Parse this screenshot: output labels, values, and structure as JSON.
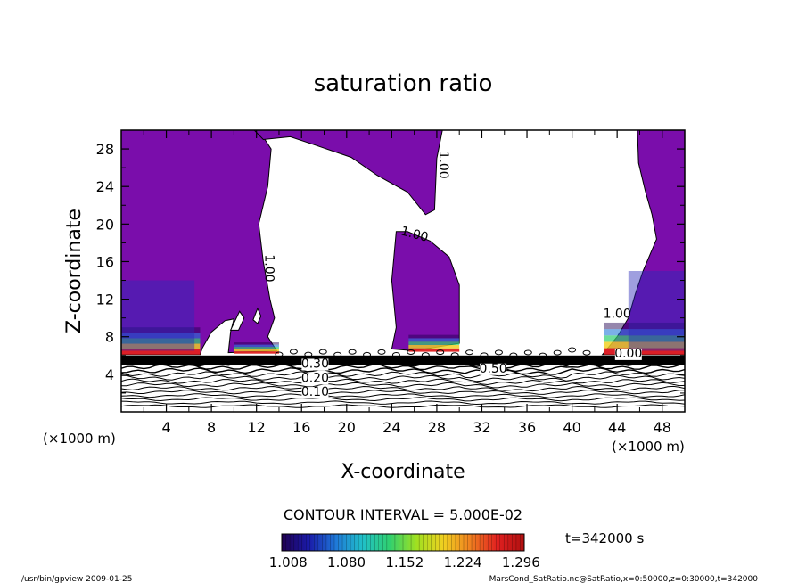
{
  "chart_data": {
    "type": "contour",
    "title": "saturation ratio",
    "xlabel": "X-coordinate",
    "ylabel": "Z-coordinate",
    "x_unit": "(×1000 m)",
    "z_unit": "(×1000 m)",
    "xlim": [
      0,
      50
    ],
    "ylim": [
      0,
      30
    ],
    "x_ticks": [
      "4",
      "8",
      "12",
      "16",
      "20",
      "24",
      "28",
      "32",
      "36",
      "40",
      "44",
      "48"
    ],
    "x_tick_values": [
      4,
      8,
      12,
      16,
      20,
      24,
      28,
      32,
      36,
      40,
      44,
      48
    ],
    "y_ticks": [
      "4",
      "8",
      "12",
      "16",
      "20",
      "24",
      "28"
    ],
    "y_tick_values": [
      4,
      8,
      12,
      16,
      20,
      24,
      28
    ],
    "contour_interval_text": "CONTOUR INTERVAL = 5.000E-02",
    "contour_labels": [
      {
        "text": "1.00",
        "x": 28.5,
        "z": 26
      },
      {
        "text": "1.00",
        "x": 26.0,
        "z": 18.5
      },
      {
        "text": "1.00",
        "x": 13.0,
        "z": 15
      },
      {
        "text": "1.00",
        "x": 44.0,
        "z": 10
      },
      {
        "text": "0.30",
        "x": 17.2,
        "z": 4.7
      },
      {
        "text": "0.20",
        "x": 17.2,
        "z": 3.2
      },
      {
        "text": "0.10",
        "x": 17.2,
        "z": 1.7
      },
      {
        "text": "0.50",
        "x": 33.0,
        "z": 4.2
      },
      {
        "text": "0.00",
        "x": 45.0,
        "z": 5.8
      }
    ],
    "colorbar": {
      "labels": [
        "1.008",
        "1.080",
        "1.152",
        "1.224",
        "1.296"
      ],
      "values": [
        1.008,
        1.08,
        1.152,
        1.224,
        1.296
      ],
      "range": [
        1.0,
        1.3
      ],
      "colors": [
        "#200050",
        "#1a1aa8",
        "#1f78d8",
        "#20c0c8",
        "#30d070",
        "#a0e020",
        "#f0d020",
        "#f08020",
        "#e02020",
        "#b01010"
      ]
    },
    "fill_color_supersaturated": "#7a0dab",
    "time_label": "t=342000 s",
    "footer_left": "/usr/bin/gpview  2009-01-25",
    "footer_right": "MarsCond_SatRatio.nc@SatRatio,x=0:50000,z=0:30000,t=342000"
  }
}
